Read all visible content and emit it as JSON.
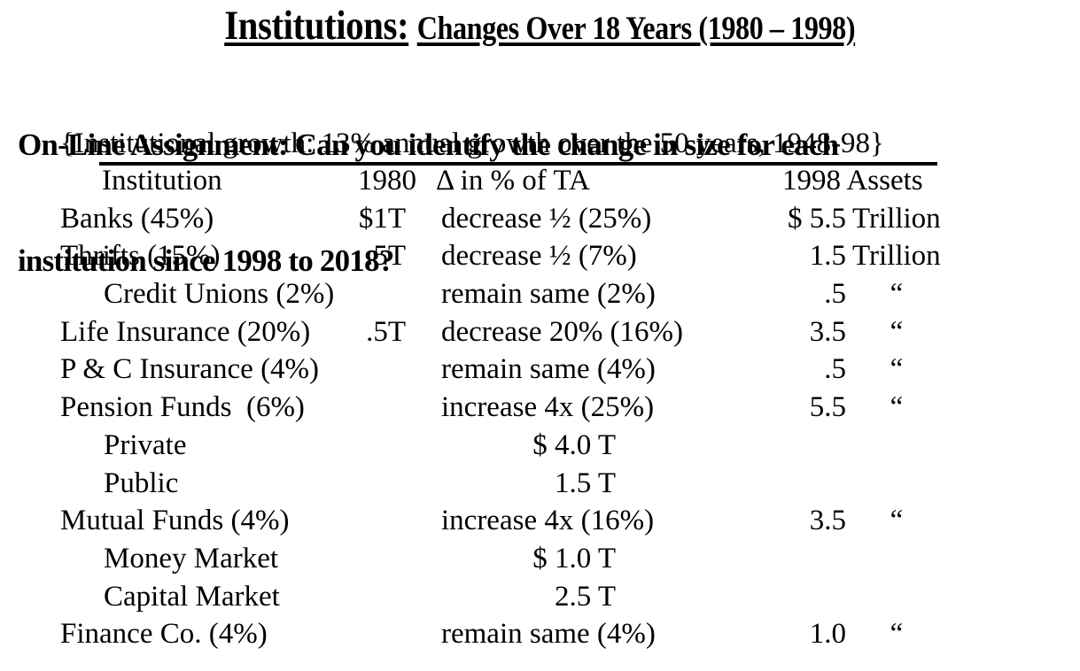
{
  "colors": {
    "background": "#ffffff",
    "text": "#000000"
  },
  "title": {
    "main": "Institutions:",
    "sub": "Changes Over 18 Years (1980 – 1998)"
  },
  "assignment": {
    "line1": "On-Line Assignment: Can you identify the change in size for each",
    "line2": "institution since 1998 to 2018?"
  },
  "growth_note": "{Institutional growth: 13% annual growth over the 50 years, 1948-98}",
  "table": {
    "headers": {
      "institution": "Institution",
      "y1980": "1980",
      "delta": "Δ in % of TA",
      "assets": "1998 Assets"
    },
    "rows": [
      {
        "institution": "Banks (45%)",
        "v1980": "$1T",
        "change": "decrease ½ (25%)",
        "asset_num": "$ 5.5",
        "asset_unit": "Trillion"
      },
      {
        "institution": "Thrifts (15%)",
        "v1980": ".5T",
        "change": "decrease ½ (7%)",
        "asset_num": "1.5",
        "asset_unit": "Trillion"
      },
      {
        "institution": "Credit Unions (2%)",
        "change": "remain same (2%)",
        "asset_num": ".5",
        "asset_unit": "“"
      },
      {
        "institution": "Life Insurance (20%)",
        "v1980": ".5T",
        "change": "decrease 20% (16%)",
        "asset_num": "3.5",
        "asset_unit": "“"
      },
      {
        "institution": "P & C Insurance (4%)",
        "change": "remain same (4%)",
        "asset_num": ".5",
        "asset_unit": "“"
      },
      {
        "institution": "Pension Funds  (6%)",
        "change": "increase 4x (25%)",
        "asset_num": "5.5",
        "asset_unit": "“"
      },
      {
        "institution": "Private",
        "sub_value": "$ 4.0 T"
      },
      {
        "institution": "Public",
        "sub_value": "1.5 T"
      },
      {
        "institution": "Mutual Funds (4%)",
        "change": "increase 4x (16%)",
        "asset_num": "3.5",
        "asset_unit": "“"
      },
      {
        "institution": "Money Market",
        "sub_value": "$ 1.0 T"
      },
      {
        "institution": "Capital Market",
        "sub_value": "2.5 T"
      },
      {
        "institution": "Finance Co. (4%)",
        "change": "remain same (4%)",
        "asset_num": "1.0",
        "asset_unit": "“"
      }
    ]
  }
}
